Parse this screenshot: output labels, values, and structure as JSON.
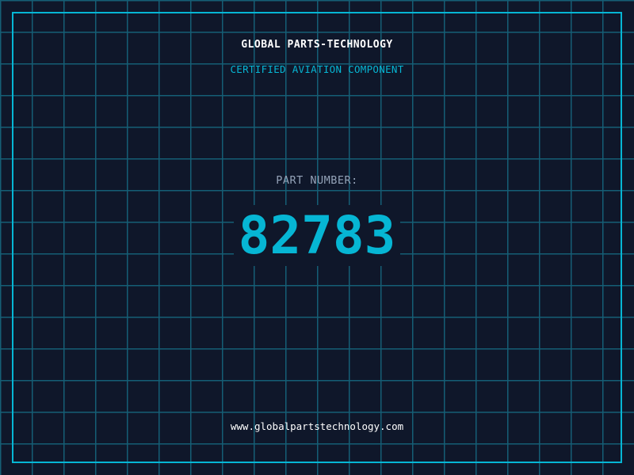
{
  "header": {
    "company": "GLOBAL PARTS-TECHNOLOGY",
    "subtitle": "CERTIFIED AVIATION COMPONENT"
  },
  "part": {
    "label": "PART NUMBER:",
    "number": "82783"
  },
  "footer": {
    "url": "www.globalpartstechnology.com"
  },
  "colors": {
    "background": "#0f172a",
    "grid": "#155e75",
    "accent": "#06b6d4"
  }
}
